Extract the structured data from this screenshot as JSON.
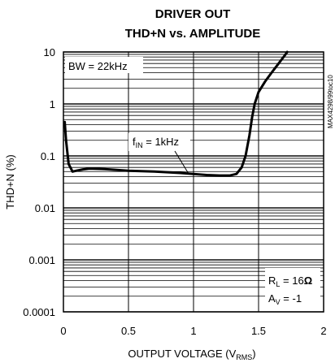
{
  "chart_data": {
    "type": "line",
    "title_line1": "DRIVER OUT",
    "title_line2": "THD+N vs. AMPLITUDE",
    "xlabel": "OUTPUT VOLTAGE (V",
    "xlabel_sub": "RMS",
    "xlabel_end": ")",
    "ylabel": "THD+N (%)",
    "x_scale": "linear",
    "y_scale": "log",
    "xlim": [
      0,
      2
    ],
    "ylim": [
      0.0001,
      10
    ],
    "x_ticks": [
      0,
      0.5,
      1,
      1.5,
      2
    ],
    "x_tick_labels": [
      "0",
      "0.5",
      "1",
      "1.5",
      "2"
    ],
    "y_ticks": [
      0.0001,
      0.001,
      0.01,
      0.1,
      1,
      10
    ],
    "y_tick_labels": [
      "0.0001",
      "0.001",
      "0.01",
      "0.1",
      "1",
      "10"
    ],
    "grid": true,
    "series": [
      {
        "color": "#000000",
        "x": [
          0.01,
          0.02,
          0.04,
          0.07,
          0.1,
          0.15,
          0.2,
          0.3,
          0.5,
          0.7,
          0.9,
          1.0,
          1.1,
          1.2,
          1.28,
          1.33,
          1.37,
          1.4,
          1.43,
          1.45,
          1.47,
          1.5,
          1.55,
          1.6,
          1.65,
          1.7,
          1.72
        ],
        "y": [
          0.45,
          0.2,
          0.07,
          0.05,
          0.052,
          0.055,
          0.057,
          0.056,
          0.052,
          0.05,
          0.047,
          0.045,
          0.043,
          0.042,
          0.042,
          0.045,
          0.06,
          0.1,
          0.25,
          0.55,
          1.0,
          1.7,
          2.7,
          4.0,
          5.8,
          8.5,
          10
        ]
      }
    ],
    "annotations": {
      "bw": "BW = 22kHz",
      "fin_main": "f",
      "fin_sub": "IN",
      "fin_rest": " = 1kHz",
      "rl_main": "R",
      "rl_sub": "L",
      "rl_rest": " = 16",
      "rl_unit": "Ω",
      "av_main": "A",
      "av_sub": "V",
      "av_rest": " = -1",
      "watermark": "MAX4298/99toc10"
    }
  }
}
